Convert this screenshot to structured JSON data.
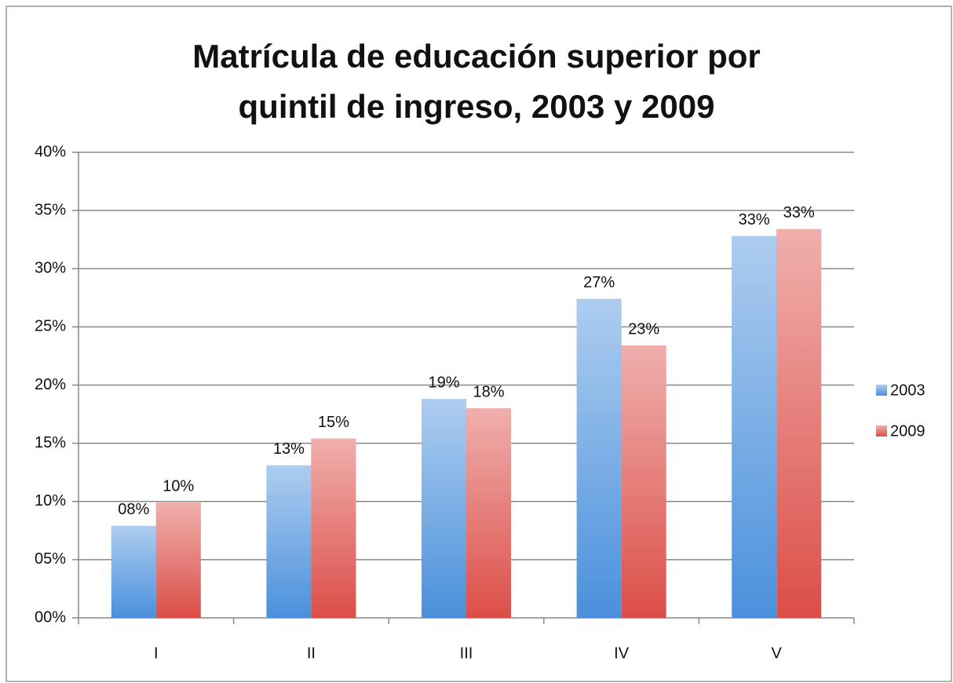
{
  "chart_data": {
    "type": "bar",
    "title": "Matrícula de educación superior por quintil de ingreso, 2003 y 2009",
    "categories": [
      "I",
      "II",
      "III",
      "IV",
      "V"
    ],
    "series": [
      {
        "name": "2003",
        "color": "#4a90dc",
        "values": [
          7.9,
          13.1,
          18.8,
          27.4,
          32.8
        ],
        "value_labels": [
          "08%",
          "13%",
          "19%",
          "27%",
          "33%"
        ]
      },
      {
        "name": "2009",
        "color": "#dc4e48",
        "values": [
          9.9,
          15.4,
          18.0,
          23.4,
          33.4
        ],
        "value_labels": [
          "10%",
          "15%",
          "18%",
          "23%",
          "33%"
        ]
      }
    ],
    "ylim": [
      0,
      40
    ],
    "yticks": [
      {
        "value": 0,
        "label": "00%"
      },
      {
        "value": 5,
        "label": "05%"
      },
      {
        "value": 10,
        "label": "10%"
      },
      {
        "value": 15,
        "label": "15%"
      },
      {
        "value": 20,
        "label": "20%"
      },
      {
        "value": 25,
        "label": "25%"
      },
      {
        "value": 30,
        "label": "30%"
      },
      {
        "value": 35,
        "label": "35%"
      },
      {
        "value": 40,
        "label": "40%"
      }
    ],
    "grid": true,
    "legend": "right"
  }
}
